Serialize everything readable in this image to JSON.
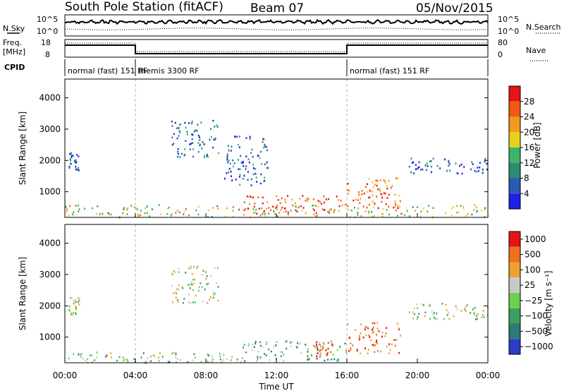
{
  "header": {
    "station": "South Pole Station (fitACF)",
    "beam": "Beam 07",
    "date": "05/Nov/2015"
  },
  "strip": {
    "nsky_label": "N.Sky",
    "nsearch_label": "N.Search",
    "noise_ticks": [
      "10^5",
      "10^0"
    ],
    "freq_label": "Freq.",
    "freq_unit": "[MHz]",
    "freq_ticks": [
      "18",
      "8"
    ],
    "nave_label": "Nave",
    "nave_ticks": [
      "80",
      "0"
    ],
    "cpid_label": "CPID",
    "cpid_segments": [
      {
        "label": "normal (fast) 151 RF",
        "start_h": 0,
        "end_h": 4
      },
      {
        "label": "themis 3300 RF",
        "start_h": 4,
        "end_h": 16
      },
      {
        "label": "normal (fast) 151 RF",
        "start_h": 16,
        "end_h": 24
      }
    ]
  },
  "colors": {
    "power": [
      "#1f1fe6",
      "#2a5ab4",
      "#2e8b72",
      "#3cb46e",
      "#e6d21e",
      "#f39a1e",
      "#f05a14",
      "#e61414"
    ],
    "velocity": [
      "#2a3cc8",
      "#2e7a78",
      "#3aa060",
      "#6ed050",
      "#c8c8c8",
      "#f0a030",
      "#f07020",
      "#e61414"
    ],
    "frame": "#000000",
    "divider": "#b4b4b4"
  },
  "chart_data": [
    {
      "type": "heatmap",
      "panel": "power",
      "xlabel": "",
      "ylabel": "Slant Range [km]",
      "xlim": [
        0,
        24
      ],
      "ylim": [
        180,
        4600
      ],
      "yticks": [
        1000,
        2000,
        3000,
        4000
      ],
      "xticks_hours": [
        0,
        4,
        8,
        12,
        16,
        20,
        24
      ],
      "colorbar": {
        "label": "Power [dB]",
        "ticks": [
          "4",
          "8",
          "12",
          "16",
          "20",
          "24",
          "28"
        ]
      },
      "echo_regions": [
        {
          "t0": 0.0,
          "t1": 24.0,
          "r0": 200,
          "r1": 600,
          "level": 0.55
        },
        {
          "t0": 10.0,
          "t1": 16.0,
          "r0": 300,
          "r1": 900,
          "level": 0.85
        },
        {
          "t0": 16.0,
          "t1": 19.0,
          "r0": 500,
          "r1": 1500,
          "level": 0.8
        },
        {
          "t0": 6.0,
          "t1": 8.7,
          "r0": 2100,
          "r1": 3300,
          "level": 0.2
        },
        {
          "t0": 0.2,
          "t1": 0.8,
          "r0": 1700,
          "r1": 2300,
          "level": 0.15
        },
        {
          "t0": 9.0,
          "t1": 11.5,
          "r0": 1200,
          "r1": 2800,
          "level": 0.2
        },
        {
          "t0": 19.5,
          "t1": 24.0,
          "r0": 1600,
          "r1": 2100,
          "level": 0.15
        }
      ]
    },
    {
      "type": "heatmap",
      "panel": "velocity",
      "xlabel": "Time UT",
      "ylabel": "Slant Range [km]",
      "xlim": [
        0,
        24
      ],
      "ylim": [
        180,
        4600
      ],
      "yticks": [
        1000,
        2000,
        3000,
        4000
      ],
      "xticks": [
        "00:00",
        "04:00",
        "08:00",
        "12:00",
        "16:00",
        "20:00",
        "00:00"
      ],
      "xticks_hours": [
        0,
        4,
        8,
        12,
        16,
        20,
        24
      ],
      "colorbar": {
        "label": "Velocity [m s⁻¹]",
        "ticks": [
          "1000",
          "500",
          "100",
          "25",
          "−25",
          "−100",
          "−500",
          "−1000"
        ]
      },
      "echo_regions": [
        {
          "t0": 0.0,
          "t1": 10.0,
          "r0": 200,
          "r1": 550,
          "level": 0.45
        },
        {
          "t0": 10.0,
          "t1": 16.0,
          "r0": 250,
          "r1": 900,
          "level": 0.35
        },
        {
          "t0": 14.0,
          "t1": 15.2,
          "r0": 300,
          "r1": 900,
          "level": 0.8
        },
        {
          "t0": 16.0,
          "t1": 19.0,
          "r0": 500,
          "r1": 1500,
          "level": 0.85
        },
        {
          "t0": 6.0,
          "t1": 8.7,
          "r0": 2100,
          "r1": 3300,
          "level": 0.5
        },
        {
          "t0": 0.2,
          "t1": 0.8,
          "r0": 1700,
          "r1": 2300,
          "level": 0.5
        },
        {
          "t0": 19.5,
          "t1": 24.0,
          "r0": 1600,
          "r1": 2100,
          "level": 0.5
        }
      ]
    }
  ]
}
